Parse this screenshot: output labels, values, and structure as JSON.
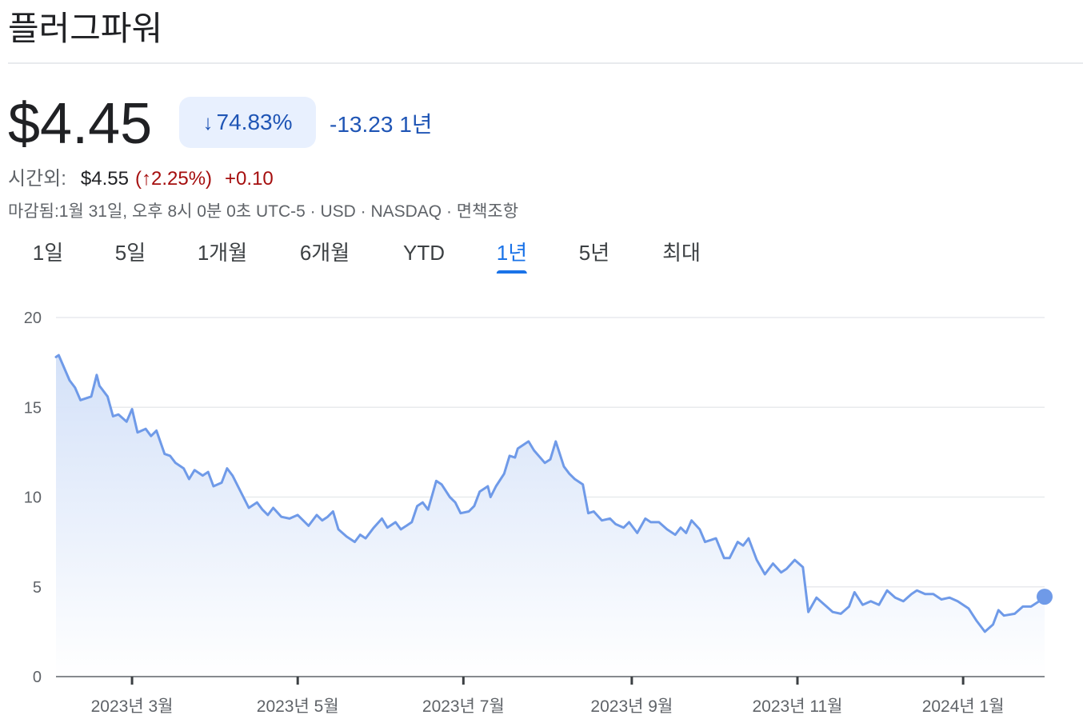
{
  "header": {
    "title": "플러그파워"
  },
  "quote": {
    "price": "$4.45",
    "change_pct": "74.83%",
    "change_arrow": "↓",
    "change_abs": "-13.23",
    "period_label": "1년",
    "afterhours_label": "시간외:",
    "afterhours_price": "$4.55",
    "afterhours_pct": "(↑2.25%)",
    "afterhours_delta": "+0.10",
    "meta": "마감됨:1월 31일, 오후 8시 0분 0초 UTC-5 · USD · NASDAQ · 면책조항"
  },
  "tabs": [
    {
      "label": "1일"
    },
    {
      "label": "5일"
    },
    {
      "label": "1개월"
    },
    {
      "label": "6개월"
    },
    {
      "label": "YTD"
    },
    {
      "label": "1년",
      "active": true
    },
    {
      "label": "5년"
    },
    {
      "label": "최대"
    }
  ],
  "colors": {
    "line": "#6f9ae8",
    "fill_top": "#d2e0f8",
    "grid": "#e8eaed",
    "chip_bg": "#e8f0fe",
    "chip_text": "#1f55b5",
    "afterhours_up": "#a50e0e",
    "tab_active": "#1a73e8"
  },
  "chart_data": {
    "type": "area",
    "x_start": "2023-02-01",
    "x_end": "2024-01-31",
    "ylim": [
      0,
      20
    ],
    "y_ticks": [
      "0",
      "5",
      "10",
      "15",
      "20"
    ],
    "x_ticks": [
      {
        "date": "2023-03-01",
        "label": "2023년 3월"
      },
      {
        "date": "2023-05-01",
        "label": "2023년 5월"
      },
      {
        "date": "2023-07-01",
        "label": "2023년 7월"
      },
      {
        "date": "2023-09-01",
        "label": "2023년 9월"
      },
      {
        "date": "2023-11-01",
        "label": "2023년 11월"
      },
      {
        "date": "2024-01-01",
        "label": "2024년 1월"
      }
    ],
    "grid": true,
    "series": [
      {
        "points": [
          [
            "2023-02-01",
            17.8
          ],
          [
            "2023-02-02",
            17.9
          ],
          [
            "2023-02-06",
            16.5
          ],
          [
            "2023-02-08",
            16.1
          ],
          [
            "2023-02-10",
            15.4
          ],
          [
            "2023-02-14",
            15.6
          ],
          [
            "2023-02-16",
            16.8
          ],
          [
            "2023-02-17",
            16.2
          ],
          [
            "2023-02-20",
            15.6
          ],
          [
            "2023-02-22",
            14.5
          ],
          [
            "2023-02-24",
            14.6
          ],
          [
            "2023-02-27",
            14.2
          ],
          [
            "2023-03-01",
            14.9
          ],
          [
            "2023-03-03",
            13.6
          ],
          [
            "2023-03-06",
            13.8
          ],
          [
            "2023-03-08",
            13.4
          ],
          [
            "2023-03-10",
            13.7
          ],
          [
            "2023-03-13",
            12.4
          ],
          [
            "2023-03-15",
            12.3
          ],
          [
            "2023-03-17",
            11.9
          ],
          [
            "2023-03-20",
            11.6
          ],
          [
            "2023-03-22",
            11.0
          ],
          [
            "2023-03-24",
            11.5
          ],
          [
            "2023-03-27",
            11.2
          ],
          [
            "2023-03-29",
            11.4
          ],
          [
            "2023-03-31",
            10.6
          ],
          [
            "2023-04-03",
            10.8
          ],
          [
            "2023-04-05",
            11.6
          ],
          [
            "2023-04-07",
            11.2
          ],
          [
            "2023-04-11",
            10.0
          ],
          [
            "2023-04-13",
            9.4
          ],
          [
            "2023-04-16",
            9.7
          ],
          [
            "2023-04-18",
            9.3
          ],
          [
            "2023-04-20",
            9.0
          ],
          [
            "2023-04-22",
            9.4
          ],
          [
            "2023-04-25",
            8.9
          ],
          [
            "2023-04-28",
            8.8
          ],
          [
            "2023-05-01",
            9.0
          ],
          [
            "2023-05-03",
            8.7
          ],
          [
            "2023-05-05",
            8.4
          ],
          [
            "2023-05-08",
            9.0
          ],
          [
            "2023-05-10",
            8.7
          ],
          [
            "2023-05-12",
            8.9
          ],
          [
            "2023-05-14",
            9.2
          ],
          [
            "2023-05-16",
            8.2
          ],
          [
            "2023-05-19",
            7.8
          ],
          [
            "2023-05-22",
            7.5
          ],
          [
            "2023-05-24",
            7.9
          ],
          [
            "2023-05-26",
            7.7
          ],
          [
            "2023-05-29",
            8.3
          ],
          [
            "2023-06-01",
            8.8
          ],
          [
            "2023-06-03",
            8.3
          ],
          [
            "2023-06-06",
            8.6
          ],
          [
            "2023-06-08",
            8.2
          ],
          [
            "2023-06-12",
            8.6
          ],
          [
            "2023-06-14",
            9.5
          ],
          [
            "2023-06-16",
            9.7
          ],
          [
            "2023-06-18",
            9.3
          ],
          [
            "2023-06-21",
            10.9
          ],
          [
            "2023-06-23",
            10.7
          ],
          [
            "2023-06-26",
            10.0
          ],
          [
            "2023-06-28",
            9.7
          ],
          [
            "2023-06-30",
            9.1
          ],
          [
            "2023-07-03",
            9.2
          ],
          [
            "2023-07-05",
            9.5
          ],
          [
            "2023-07-07",
            10.3
          ],
          [
            "2023-07-10",
            10.6
          ],
          [
            "2023-07-11",
            10.0
          ],
          [
            "2023-07-13",
            10.6
          ],
          [
            "2023-07-16",
            11.3
          ],
          [
            "2023-07-18",
            12.3
          ],
          [
            "2023-07-20",
            12.2
          ],
          [
            "2023-07-21",
            12.7
          ],
          [
            "2023-07-25",
            13.1
          ],
          [
            "2023-07-27",
            12.6
          ],
          [
            "2023-07-31",
            11.9
          ],
          [
            "2023-08-02",
            12.1
          ],
          [
            "2023-08-04",
            13.1
          ],
          [
            "2023-08-07",
            11.7
          ],
          [
            "2023-08-09",
            11.3
          ],
          [
            "2023-08-11",
            11.0
          ],
          [
            "2023-08-14",
            10.7
          ],
          [
            "2023-08-16",
            9.1
          ],
          [
            "2023-08-18",
            9.2
          ],
          [
            "2023-08-21",
            8.7
          ],
          [
            "2023-08-24",
            8.8
          ],
          [
            "2023-08-26",
            8.5
          ],
          [
            "2023-08-29",
            8.3
          ],
          [
            "2023-08-31",
            8.6
          ],
          [
            "2023-09-03",
            8.0
          ],
          [
            "2023-09-06",
            8.8
          ],
          [
            "2023-09-08",
            8.6
          ],
          [
            "2023-09-11",
            8.6
          ],
          [
            "2023-09-14",
            8.2
          ],
          [
            "2023-09-17",
            7.9
          ],
          [
            "2023-09-19",
            8.3
          ],
          [
            "2023-09-21",
            8.0
          ],
          [
            "2023-09-23",
            8.7
          ],
          [
            "2023-09-26",
            8.2
          ],
          [
            "2023-09-28",
            7.5
          ],
          [
            "2023-10-02",
            7.7
          ],
          [
            "2023-10-05",
            6.6
          ],
          [
            "2023-10-07",
            6.6
          ],
          [
            "2023-10-10",
            7.5
          ],
          [
            "2023-10-12",
            7.3
          ],
          [
            "2023-10-14",
            7.7
          ],
          [
            "2023-10-17",
            6.5
          ],
          [
            "2023-10-20",
            5.7
          ],
          [
            "2023-10-23",
            6.3
          ],
          [
            "2023-10-26",
            5.8
          ],
          [
            "2023-10-28",
            6.0
          ],
          [
            "2023-10-31",
            6.5
          ],
          [
            "2023-11-03",
            6.1
          ],
          [
            "2023-11-05",
            3.6
          ],
          [
            "2023-11-08",
            4.4
          ],
          [
            "2023-11-11",
            4.0
          ],
          [
            "2023-11-14",
            3.6
          ],
          [
            "2023-11-17",
            3.5
          ],
          [
            "2023-11-20",
            3.9
          ],
          [
            "2023-11-22",
            4.7
          ],
          [
            "2023-11-25",
            4.0
          ],
          [
            "2023-11-28",
            4.2
          ],
          [
            "2023-12-01",
            4.0
          ],
          [
            "2023-12-04",
            4.8
          ],
          [
            "2023-12-07",
            4.4
          ],
          [
            "2023-12-10",
            4.2
          ],
          [
            "2023-12-13",
            4.6
          ],
          [
            "2023-12-15",
            4.8
          ],
          [
            "2023-12-18",
            4.6
          ],
          [
            "2023-12-21",
            4.6
          ],
          [
            "2023-12-24",
            4.3
          ],
          [
            "2023-12-27",
            4.4
          ],
          [
            "2023-12-30",
            4.2
          ],
          [
            "2024-01-03",
            3.8
          ],
          [
            "2024-01-06",
            3.1
          ],
          [
            "2024-01-09",
            2.5
          ],
          [
            "2024-01-12",
            2.9
          ],
          [
            "2024-01-14",
            3.7
          ],
          [
            "2024-01-16",
            3.4
          ],
          [
            "2024-01-20",
            3.5
          ],
          [
            "2024-01-23",
            3.9
          ],
          [
            "2024-01-26",
            3.9
          ],
          [
            "2024-01-29",
            4.2
          ],
          [
            "2024-01-31",
            4.45
          ]
        ]
      }
    ]
  }
}
